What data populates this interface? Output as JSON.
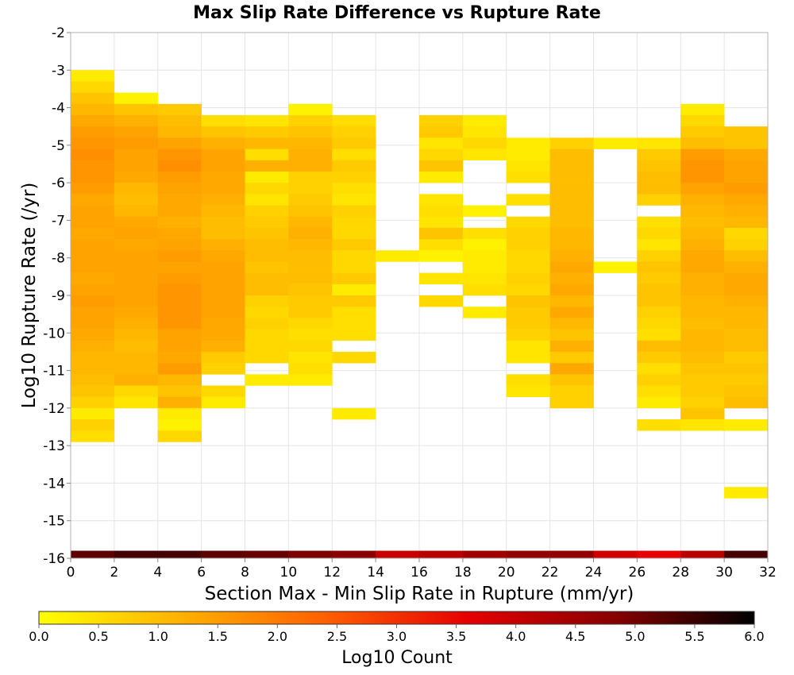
{
  "chart_data": {
    "type": "heatmap",
    "title": "Max Slip Rate Difference vs Rupture Rate",
    "xlabel": "Section Max - Min Slip Rate in Rupture (mm/yr)",
    "ylabel": "Log10 Rupture Rate (/yr)",
    "xlim": [
      0,
      32
    ],
    "ylim": [
      -16,
      -2
    ],
    "x_ticks": [
      "0",
      "2",
      "4",
      "6",
      "8",
      "10",
      "12",
      "14",
      "16",
      "18",
      "20",
      "22",
      "24",
      "26",
      "28",
      "30",
      "32"
    ],
    "y_ticks": [
      "-2",
      "-3",
      "-4",
      "-5",
      "-6",
      "-7",
      "-8",
      "-9",
      "-10",
      "-11",
      "-12",
      "-13",
      "-14",
      "-15",
      "-16"
    ],
    "grid": true,
    "x_bin_width": 2,
    "y_bin_height": 0.3,
    "colorbar": {
      "label": "Log10 Count",
      "range": [
        0,
        6
      ],
      "ticks": [
        "0.0",
        "0.5",
        "1.0",
        "1.5",
        "2.0",
        "2.5",
        "3.0",
        "3.5",
        "4.0",
        "4.5",
        "5.0",
        "5.5",
        "6.0"
      ],
      "colors": [
        "#ffff00",
        "#ffb000",
        "#ff6000",
        "#e60000",
        "#8a0000",
        "#000000"
      ]
    },
    "bottom_row": {
      "y": -15.95,
      "values": [
        5.2,
        5.4,
        5.4,
        5.2,
        5.1,
        4.9,
        4.8,
        4.0,
        4.2,
        4.5,
        4.7,
        4.7,
        3.9,
        3.6,
        4.2,
        5.4
      ]
    },
    "columns": [
      {
        "x0": 0,
        "y_top": -3.0,
        "values": [
          0.3,
          0.6,
          0.9,
          1.1,
          1.3,
          1.5,
          1.6,
          1.7,
          1.6,
          1.6,
          1.5,
          1.3,
          1.4,
          1.4,
          1.3,
          1.4,
          1.4,
          1.4,
          1.3,
          1.4,
          1.5,
          1.4,
          1.4,
          1.3,
          1.2,
          1.1,
          1.1,
          1.0,
          0.9,
          0.7,
          0.3,
          0.7,
          0.5
        ]
      },
      {
        "x0": 2,
        "y_top": -3.6,
        "values": [
          0.2,
          0.9,
          1.2,
          1.4,
          1.5,
          1.4,
          1.4,
          1.3,
          1.1,
          1.0,
          1.1,
          1.3,
          1.4,
          1.3,
          1.4,
          1.4,
          1.4,
          1.4,
          1.4,
          1.3,
          1.2,
          1.1,
          1.0,
          1.1,
          1.1,
          1.2,
          0.6,
          0.4
        ]
      },
      {
        "x0": 4,
        "y_top": -3.9,
        "values": [
          0.8,
          1.0,
          1.1,
          1.4,
          1.6,
          1.7,
          1.5,
          1.4,
          1.3,
          1.3,
          1.2,
          1.3,
          1.4,
          1.5,
          1.4,
          1.5,
          1.6,
          1.6,
          1.6,
          1.6,
          1.4,
          1.4,
          1.3,
          1.5,
          1.1,
          0.9,
          1.2,
          0.3,
          0.2,
          0.6
        ]
      },
      {
        "x0": 6,
        "y_top": -4.2,
        "values": [
          0.5,
          0.9,
          1.2,
          1.4,
          1.4,
          1.3,
          1.3,
          1.2,
          1.1,
          1.0,
          1.0,
          1.2,
          1.3,
          1.4,
          1.4,
          1.4,
          1.4,
          1.4,
          1.3,
          1.3,
          1.2,
          0.8,
          0.7,
          null,
          0.6,
          0.3
        ]
      },
      {
        "x0": 8,
        "y_top": -4.2,
        "values": [
          0.4,
          0.8,
          1.1,
          0.5,
          1.2,
          0.3,
          0.6,
          0.4,
          0.7,
          0.8,
          0.9,
          1.0,
          1.0,
          0.9,
          1.0,
          1.0,
          0.7,
          0.6,
          0.7,
          0.6,
          0.6,
          0.6,
          null,
          0.3
        ]
      },
      {
        "x0": 10,
        "y_top": -3.9,
        "values": [
          0.2,
          0.7,
          0.9,
          1.1,
          1.2,
          1.2,
          0.7,
          0.7,
          0.8,
          0.9,
          1.1,
          1.2,
          1.1,
          1.0,
          1.0,
          1.0,
          0.9,
          0.8,
          0.8,
          0.6,
          0.5,
          0.6,
          0.4,
          0.5,
          0.3
        ]
      },
      {
        "x0": 12,
        "y_top": -4.2,
        "values": [
          0.5,
          0.7,
          0.8,
          0.5,
          0.8,
          0.7,
          0.5,
          0.4,
          0.7,
          0.6,
          0.6,
          0.8,
          0.6,
          0.6,
          0.8,
          0.3,
          0.8,
          0.5,
          0.5,
          0.5,
          null,
          0.6,
          null,
          null,
          null,
          null,
          0.3
        ]
      },
      {
        "x0": 14,
        "y_top": -7.8,
        "values": [
          0.3
        ]
      },
      {
        "x0": 16,
        "y_top": -4.2,
        "values": [
          0.7,
          0.8,
          0.4,
          0.6,
          0.9,
          0.3,
          null,
          0.4,
          0.5,
          0.4,
          0.9,
          0.5,
          0.2,
          null,
          0.4,
          null,
          0.6
        ]
      },
      {
        "x0": 18,
        "y_top": -4.2,
        "values": [
          0.3,
          0.4,
          0.6,
          0.4,
          null,
          null,
          null,
          null,
          0.2,
          null,
          0.5,
          0.2,
          0.3,
          0.3,
          0.4,
          0.5,
          null,
          0.3
        ]
      },
      {
        "x0": 20,
        "y_top": -4.8,
        "values": [
          0.3,
          0.3,
          0.4,
          0.5,
          null,
          0.5,
          null,
          0.6,
          0.7,
          0.7,
          0.6,
          0.6,
          0.7,
          0.6,
          0.9,
          0.8,
          0.8,
          0.7,
          0.4,
          0.4,
          null,
          0.5,
          0.4
        ]
      },
      {
        "x0": 22,
        "y_top": -4.8,
        "values": [
          0.7,
          1.0,
          1.0,
          1.0,
          1.0,
          1.0,
          1.0,
          1.0,
          1.1,
          1.1,
          1.2,
          1.3,
          1.2,
          1.3,
          1.1,
          1.3,
          1.1,
          0.9,
          1.2,
          0.8,
          1.3,
          0.9,
          0.7,
          0.7
        ]
      },
      {
        "x0": 24,
        "y_top": -4.8,
        "values": [
          0.3
        ]
      },
      {
        "x0": 24,
        "y_top": -8.1,
        "values": [
          0.2
        ]
      },
      {
        "x0": 26,
        "y_top": -4.8,
        "values": [
          0.4,
          0.8,
          0.9,
          1.0,
          1.0,
          0.7,
          null,
          0.5,
          0.6,
          0.4,
          0.7,
          0.9,
          0.8,
          0.9,
          0.9,
          0.7,
          0.6,
          0.5,
          1.0,
          0.8,
          0.5,
          0.7,
          0.5,
          0.3,
          null,
          0.5
        ]
      },
      {
        "x0": 28,
        "y_top": -3.9,
        "values": [
          0.3,
          0.6,
          0.8,
          1.0,
          1.5,
          1.6,
          1.6,
          1.4,
          1.2,
          1.1,
          1.0,
          1.1,
          1.2,
          1.3,
          1.3,
          1.2,
          1.2,
          1.1,
          1.1,
          1.0,
          1.1,
          1.1,
          1.0,
          0.9,
          0.8,
          0.8,
          0.7,
          0.9,
          0.4
        ]
      },
      {
        "x0": 30,
        "y_top": -4.5,
        "values": [
          0.9,
          0.9,
          1.3,
          1.4,
          1.4,
          1.5,
          1.3,
          1.2,
          1.1,
          0.6,
          0.7,
          1.0,
          1.2,
          1.3,
          1.3,
          1.2,
          1.1,
          1.1,
          1.0,
          1.0,
          0.8,
          0.9,
          0.8,
          0.9,
          1.0,
          null,
          0.3,
          null,
          null,
          null,
          null,
          null,
          0.3
        ]
      }
    ]
  }
}
